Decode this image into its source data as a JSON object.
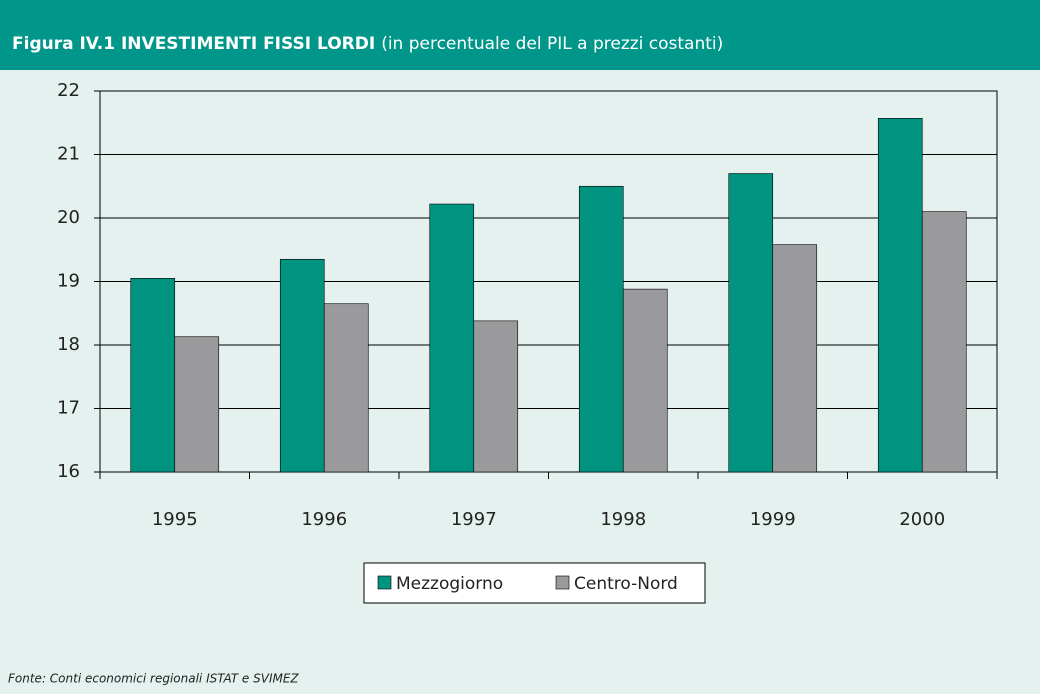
{
  "chart_data": {
    "type": "bar",
    "title": "Figura IV.1 INVESTIMENTI FISSI LORDI",
    "subtitle": "(in percentuale del PIL a prezzi costanti)",
    "categories": [
      "1995",
      "1996",
      "1997",
      "1998",
      "1999",
      "2000"
    ],
    "series": [
      {
        "name": "Mezzogiorno",
        "color": "#00937f",
        "values": [
          19.05,
          19.35,
          20.22,
          20.5,
          20.7,
          21.57
        ]
      },
      {
        "name": "Centro-Nord",
        "color": "#9a9a9c",
        "values": [
          18.13,
          18.65,
          18.38,
          18.88,
          19.58,
          20.1
        ]
      }
    ],
    "ylim": [
      16,
      22
    ],
    "yticks": [
      16,
      17,
      18,
      19,
      20,
      21,
      22
    ],
    "grid": true,
    "legend": "bottom",
    "source": "Fonte: Conti economici regionali ISTAT e SVIMEZ"
  }
}
